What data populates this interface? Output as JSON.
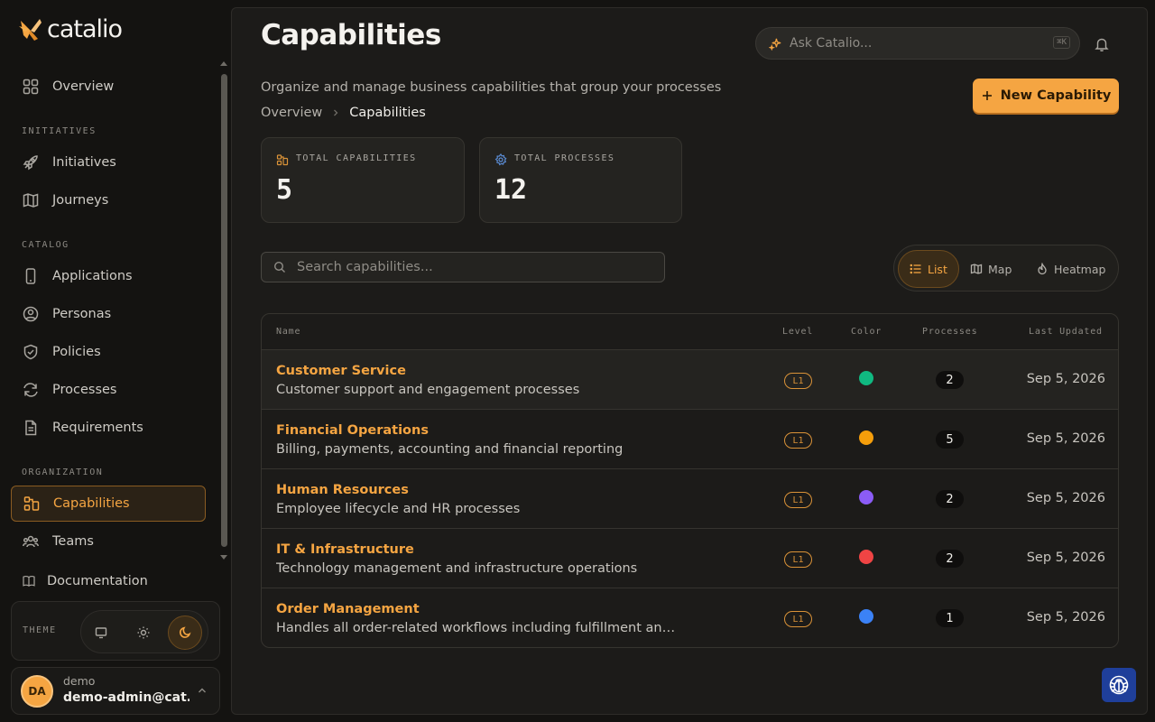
{
  "app": {
    "logo_text": "catalio"
  },
  "sidebar": {
    "overview_label": "Overview",
    "sections": {
      "initiatives": "INITIATIVES",
      "catalog": "CATALOG",
      "organization": "ORGANIZATION"
    },
    "items": {
      "initiatives": "Initiatives",
      "journeys": "Journeys",
      "applications": "Applications",
      "personas": "Personas",
      "policies": "Policies",
      "processes": "Processes",
      "requirements": "Requirements",
      "capabilities": "Capabilities",
      "teams": "Teams",
      "documentation": "Documentation"
    },
    "active_item": "capabilities"
  },
  "theme": {
    "label": "THEME",
    "options": [
      "system",
      "light",
      "dark"
    ],
    "selected": "dark"
  },
  "user": {
    "initials": "DA",
    "name": "demo",
    "email": "demo-admin@cat..."
  },
  "header": {
    "title": "Capabilities",
    "ask_placeholder": "Ask Catalio...",
    "ask_shortcut": "⌘K",
    "subtitle": "Organize and manage business capabilities that group your processes",
    "new_button": "New Capability",
    "breadcrumb": [
      "Overview",
      "Capabilities"
    ]
  },
  "stats": [
    {
      "label": "TOTAL CAPABILITIES",
      "value": "5"
    },
    {
      "label": "TOTAL PROCESSES",
      "value": "12"
    }
  ],
  "search": {
    "placeholder": "Search capabilities..."
  },
  "view_toggle": {
    "list": "List",
    "map": "Map",
    "heatmap": "Heatmap",
    "selected": "List"
  },
  "table": {
    "headers": {
      "name": "Name",
      "level": "Level",
      "color": "Color",
      "processes": "Processes",
      "updated": "Last Updated"
    },
    "rows": [
      {
        "name": "Customer Service",
        "description": "Customer support and engagement processes",
        "level": "L1",
        "color": "#10b981",
        "processes": "2",
        "updated": "Sep 5, 2026"
      },
      {
        "name": "Financial Operations",
        "description": "Billing, payments, accounting and financial reporting",
        "level": "L1",
        "color": "#f59e0b",
        "processes": "5",
        "updated": "Sep 5, 2026"
      },
      {
        "name": "Human Resources",
        "description": "Employee lifecycle and HR processes",
        "level": "L1",
        "color": "#8b5cf6",
        "processes": "2",
        "updated": "Sep 5, 2026"
      },
      {
        "name": "IT & Infrastructure",
        "description": "Technology management and infrastructure operations",
        "level": "L1",
        "color": "#ef4444",
        "processes": "2",
        "updated": "Sep 5, 2026"
      },
      {
        "name": "Order Management",
        "description": "Handles all order-related workflows including fulfillment and tracking",
        "level": "L1",
        "color": "#3b82f6",
        "processes": "1",
        "updated": "Sep 5, 2026"
      }
    ]
  }
}
